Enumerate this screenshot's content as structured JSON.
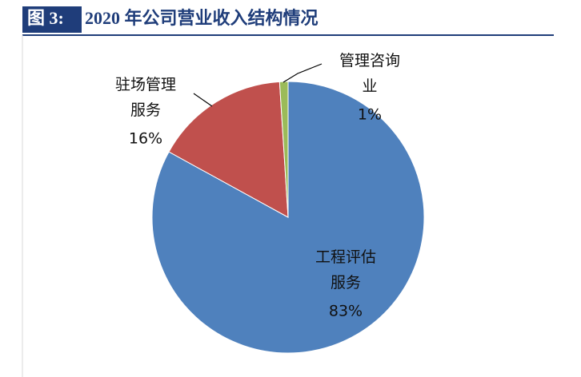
{
  "chart_data": {
    "type": "pie",
    "figure_label": "图 3:",
    "title": "2020 年公司营业收入结构情况",
    "categories": [
      "工程评估服务",
      "驻场管理服务",
      "管理咨询业"
    ],
    "values": [
      83,
      16,
      1
    ],
    "value_labels": [
      "83%",
      "16%",
      "1%"
    ],
    "colors": [
      "#4f81bd",
      "#c0504d",
      "#9bbb59"
    ]
  }
}
